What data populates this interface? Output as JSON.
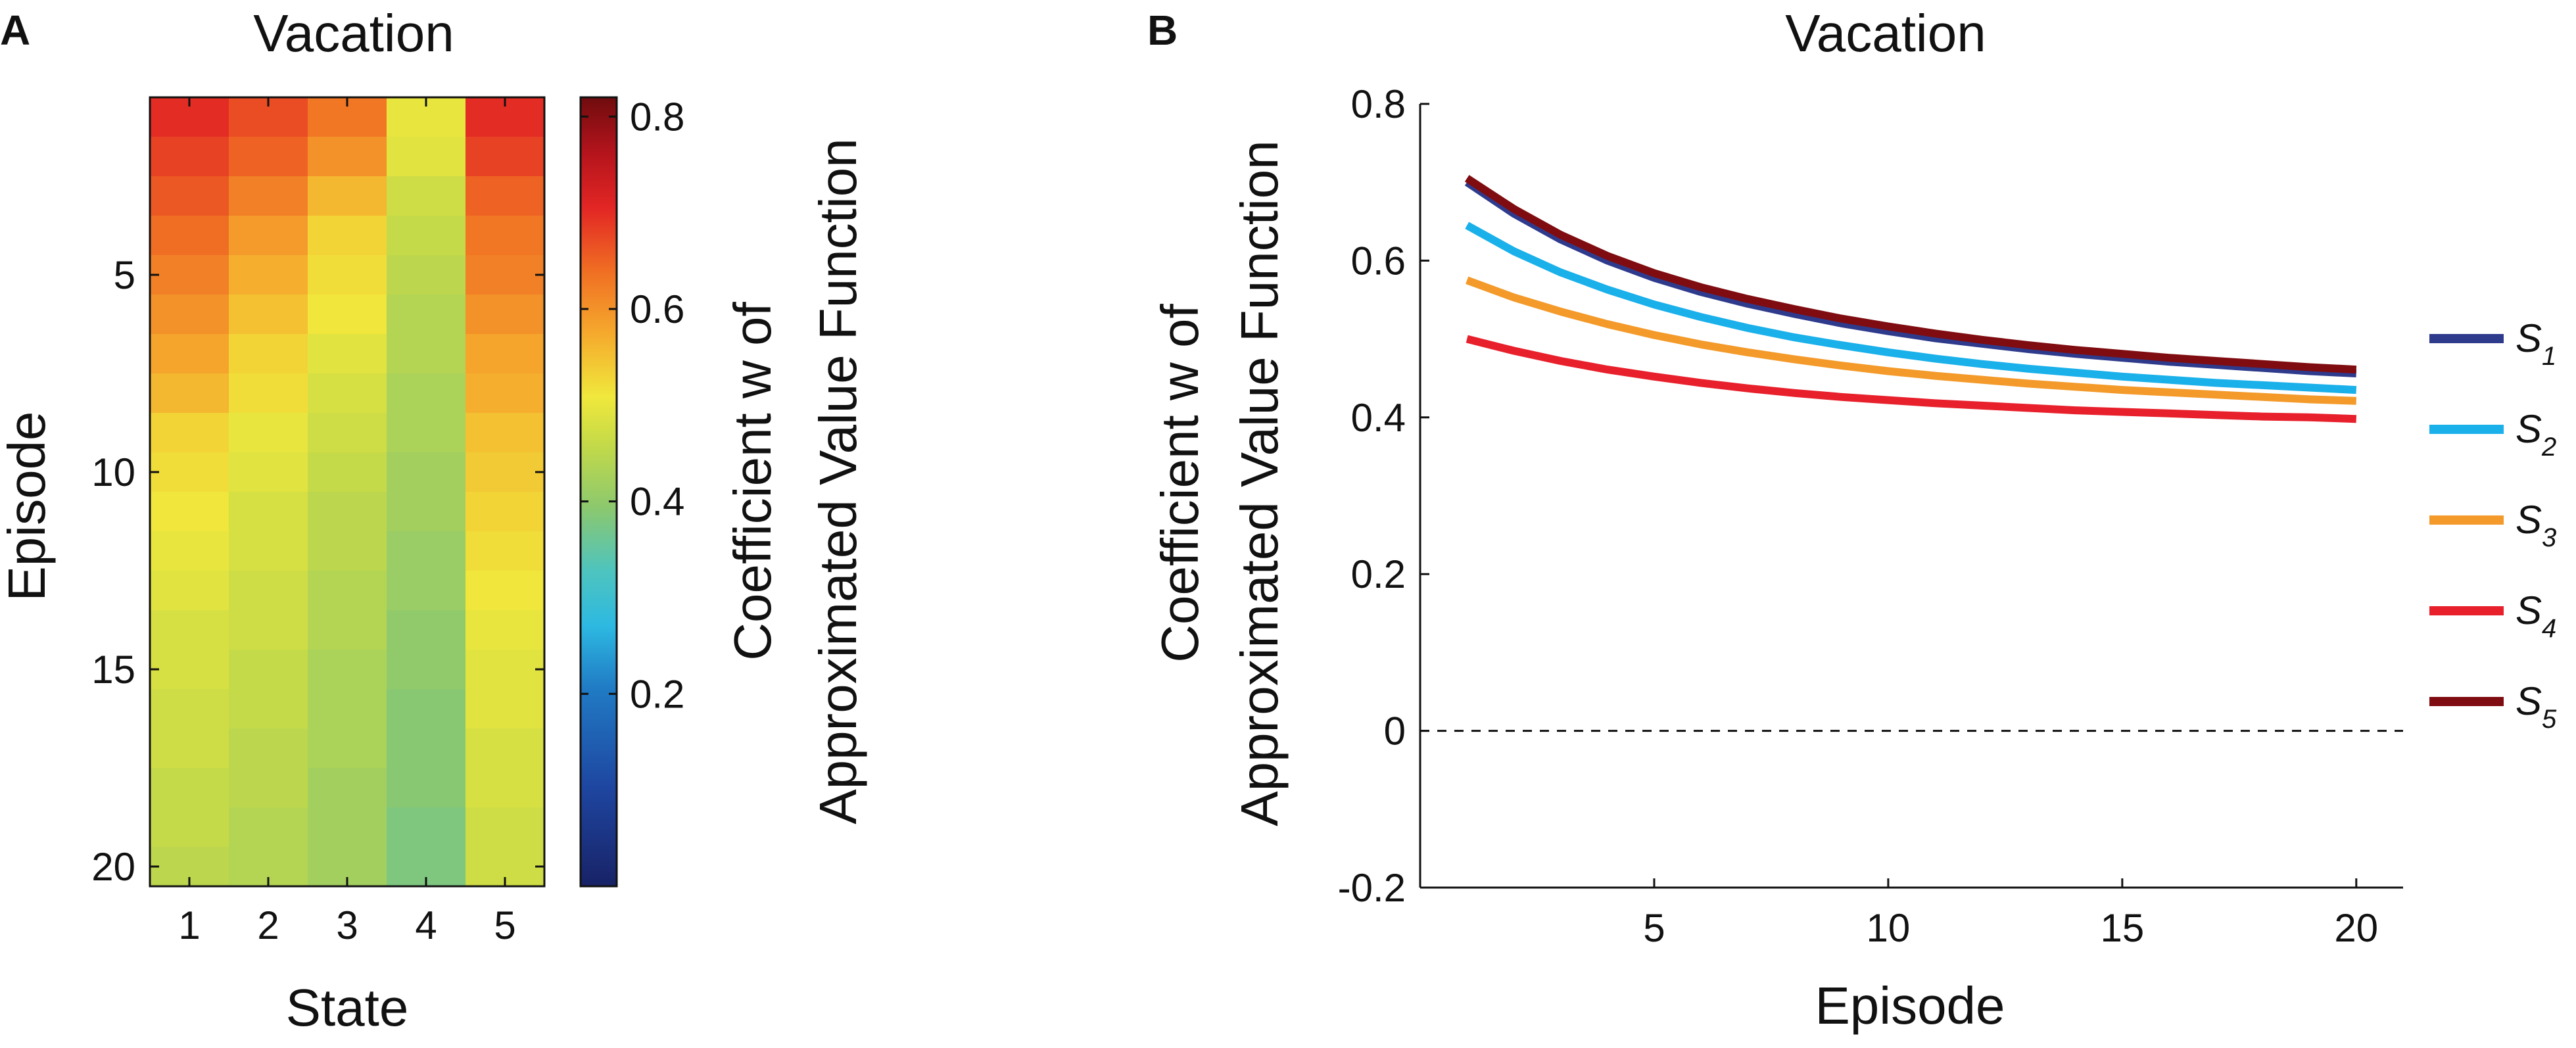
{
  "figure": {
    "panel_a_letter": "A",
    "panel_b_letter": "B"
  },
  "chart_data": [
    {
      "type": "heatmap",
      "panel": "A",
      "title": "Vacation",
      "xlabel": "State",
      "ylabel": "Episode",
      "x": [
        1,
        2,
        3,
        4,
        5
      ],
      "y": [
        1,
        2,
        3,
        4,
        5,
        6,
        7,
        8,
        9,
        10,
        11,
        12,
        13,
        14,
        15,
        16,
        17,
        18,
        19,
        20
      ],
      "xticks": [
        1,
        2,
        3,
        4,
        5
      ],
      "yticks": [
        5,
        10,
        15,
        20
      ],
      "values": [
        [
          0.7,
          0.67,
          0.63,
          0.5,
          0.7
        ],
        [
          0.68,
          0.65,
          0.6,
          0.49,
          0.68
        ],
        [
          0.66,
          0.62,
          0.56,
          0.47,
          0.65
        ],
        [
          0.64,
          0.59,
          0.53,
          0.46,
          0.63
        ],
        [
          0.62,
          0.57,
          0.52,
          0.45,
          0.62
        ],
        [
          0.6,
          0.55,
          0.51,
          0.44,
          0.6
        ],
        [
          0.58,
          0.53,
          0.49,
          0.44,
          0.58
        ],
        [
          0.56,
          0.52,
          0.48,
          0.43,
          0.57
        ],
        [
          0.53,
          0.5,
          0.47,
          0.43,
          0.55
        ],
        [
          0.52,
          0.49,
          0.46,
          0.42,
          0.54
        ],
        [
          0.51,
          0.48,
          0.45,
          0.42,
          0.53
        ],
        [
          0.5,
          0.48,
          0.45,
          0.41,
          0.52
        ],
        [
          0.49,
          0.47,
          0.44,
          0.41,
          0.51
        ],
        [
          0.48,
          0.47,
          0.44,
          0.4,
          0.5
        ],
        [
          0.48,
          0.46,
          0.43,
          0.4,
          0.49
        ],
        [
          0.47,
          0.46,
          0.43,
          0.39,
          0.49
        ],
        [
          0.47,
          0.45,
          0.43,
          0.39,
          0.48
        ],
        [
          0.46,
          0.45,
          0.42,
          0.39,
          0.48
        ],
        [
          0.46,
          0.44,
          0.42,
          0.38,
          0.47
        ],
        [
          0.45,
          0.44,
          0.42,
          0.38,
          0.47
        ]
      ],
      "colorbar": {
        "range": [
          0,
          0.82
        ],
        "ticks": [
          0.2,
          0.4,
          0.6,
          0.8
        ],
        "tick_labels": [
          "0.2",
          "0.4",
          "0.6",
          "0.8"
        ],
        "label_line1": "Coefficient w of",
        "label_line2": "Approximated Value Function"
      }
    },
    {
      "type": "line",
      "panel": "B",
      "title": "Vacation",
      "xlabel": "Episode",
      "ylabel_line1": "Coefficient w of",
      "ylabel_line2": "Approximated Value Function",
      "xlim": [
        0,
        21
      ],
      "ylim": [
        -0.2,
        0.8
      ],
      "xticks": [
        5,
        10,
        15,
        20
      ],
      "yticks": [
        -0.2,
        0,
        0.2,
        0.4,
        0.6,
        0.8
      ],
      "ytick_labels": [
        "-0.2",
        "0",
        "0.2",
        "0.4",
        "0.6",
        "0.8"
      ],
      "reference_line": {
        "y": 0,
        "style": "dashed"
      },
      "legend_position": "right",
      "x": [
        1,
        2,
        3,
        4,
        5,
        6,
        7,
        8,
        9,
        10,
        11,
        12,
        13,
        14,
        15,
        16,
        17,
        18,
        19,
        20
      ],
      "series": [
        {
          "name": "S",
          "sub": "1",
          "color": "#2e3a8c",
          "values": [
            0.7,
            0.66,
            0.627,
            0.6,
            0.578,
            0.56,
            0.545,
            0.532,
            0.52,
            0.51,
            0.501,
            0.494,
            0.487,
            0.481,
            0.476,
            0.471,
            0.467,
            0.463,
            0.459,
            0.456
          ]
        },
        {
          "name": "S",
          "sub": "2",
          "color": "#1ab0ea",
          "values": [
            0.645,
            0.612,
            0.585,
            0.563,
            0.544,
            0.528,
            0.514,
            0.502,
            0.492,
            0.483,
            0.475,
            0.468,
            0.462,
            0.457,
            0.452,
            0.448,
            0.444,
            0.441,
            0.438,
            0.435
          ]
        },
        {
          "name": "S",
          "sub": "3",
          "color": "#f39a2a",
          "values": [
            0.575,
            0.553,
            0.535,
            0.519,
            0.505,
            0.493,
            0.483,
            0.474,
            0.466,
            0.459,
            0.453,
            0.448,
            0.443,
            0.439,
            0.435,
            0.432,
            0.429,
            0.426,
            0.423,
            0.421
          ]
        },
        {
          "name": "S",
          "sub": "4",
          "color": "#e8202c",
          "values": [
            0.5,
            0.485,
            0.472,
            0.461,
            0.452,
            0.444,
            0.437,
            0.431,
            0.426,
            0.422,
            0.418,
            0.415,
            0.412,
            0.409,
            0.407,
            0.405,
            0.403,
            0.401,
            0.4,
            0.398
          ]
        },
        {
          "name": "S",
          "sub": "5",
          "color": "#7f0c10",
          "values": [
            0.705,
            0.666,
            0.633,
            0.606,
            0.584,
            0.566,
            0.551,
            0.538,
            0.526,
            0.516,
            0.507,
            0.499,
            0.492,
            0.486,
            0.481,
            0.476,
            0.472,
            0.468,
            0.464,
            0.461
          ]
        }
      ]
    }
  ]
}
